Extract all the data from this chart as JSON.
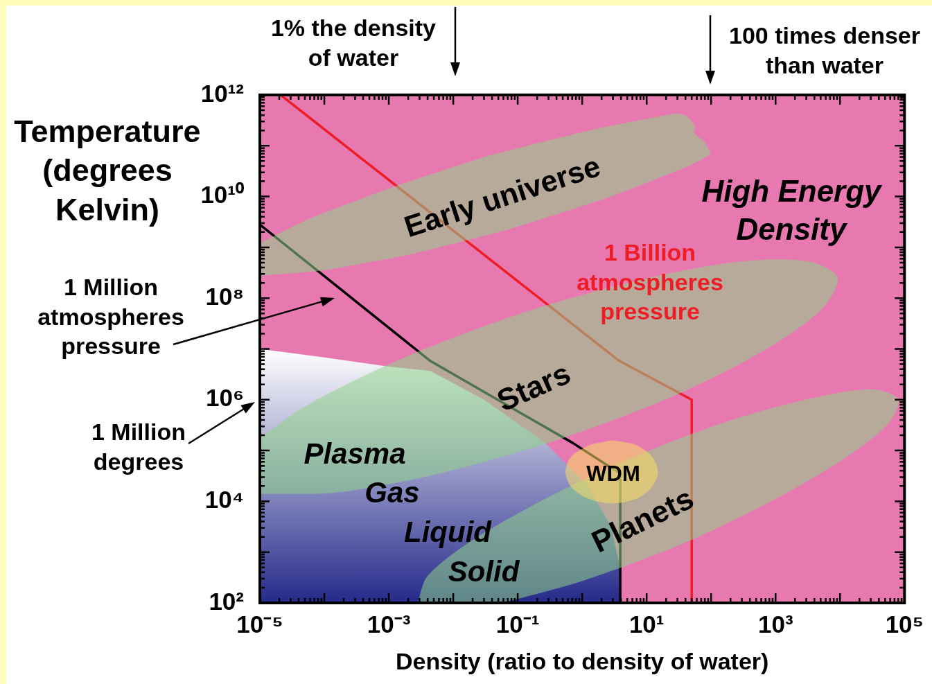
{
  "chart_data": {
    "type": "line",
    "xlabel": "Density (ratio to density of water)",
    "ylabel": "Temperature (degrees Kelvin)",
    "log": "xy",
    "xlim": [
      1e-05,
      100000.0
    ],
    "ylim": [
      100,
      1000000000000.0
    ],
    "xticks": [
      {
        "value": 1e-05,
        "label": "10⁻⁵"
      },
      {
        "value": 2e-05,
        "label": null
      },
      {
        "value": 3e-05,
        "label": null
      },
      {
        "value": 4e-05,
        "label": null
      },
      {
        "value": 5e-05,
        "label": null
      },
      {
        "value": 6e-05,
        "label": null
      },
      {
        "value": 7e-05,
        "label": null
      },
      {
        "value": 8e-05,
        "label": null
      },
      {
        "value": 9e-05,
        "label": null
      },
      {
        "value": 0.0001,
        "label": null
      },
      {
        "value": 0.0002,
        "label": null
      },
      {
        "value": 0.0003,
        "label": null
      },
      {
        "value": 0.0004,
        "label": null
      },
      {
        "value": 0.0005,
        "label": null
      },
      {
        "value": 0.0006,
        "label": null
      },
      {
        "value": 0.0007,
        "label": null
      },
      {
        "value": 0.0008,
        "label": null
      },
      {
        "value": 0.0009,
        "label": null
      },
      {
        "value": 0.001,
        "label": "10⁻³"
      },
      {
        "value": 0.002,
        "label": null
      },
      {
        "value": 0.003,
        "label": null
      },
      {
        "value": 0.004,
        "label": null
      },
      {
        "value": 0.005,
        "label": null
      },
      {
        "value": 0.006,
        "label": null
      },
      {
        "value": 0.007,
        "label": null
      },
      {
        "value": 0.008,
        "label": null
      },
      {
        "value": 0.009,
        "label": null
      },
      {
        "value": 0.01,
        "label": null
      },
      {
        "value": 0.02,
        "label": null
      },
      {
        "value": 0.03,
        "label": null
      },
      {
        "value": 0.04,
        "label": null
      },
      {
        "value": 0.05,
        "label": null
      },
      {
        "value": 0.06,
        "label": null
      },
      {
        "value": 0.07,
        "label": null
      },
      {
        "value": 0.08,
        "label": null
      },
      {
        "value": 0.09,
        "label": null
      },
      {
        "value": 0.1,
        "label": "10⁻¹"
      },
      {
        "value": 0.2,
        "label": null
      },
      {
        "value": 0.3,
        "label": null
      },
      {
        "value": 0.4,
        "label": null
      },
      {
        "value": 0.5,
        "label": null
      },
      {
        "value": 0.6,
        "label": null
      },
      {
        "value": 0.7,
        "label": null
      },
      {
        "value": 0.8,
        "label": null
      },
      {
        "value": 0.9,
        "label": null
      },
      {
        "value": 1,
        "label": null
      },
      {
        "value": 2,
        "label": null
      },
      {
        "value": 3,
        "label": null
      },
      {
        "value": 4,
        "label": null
      },
      {
        "value": 5,
        "label": null
      },
      {
        "value": 6,
        "label": null
      },
      {
        "value": 7,
        "label": null
      },
      {
        "value": 8,
        "label": null
      },
      {
        "value": 9,
        "label": null
      },
      {
        "value": 10,
        "label": "10¹"
      },
      {
        "value": 20,
        "label": null
      },
      {
        "value": 30,
        "label": null
      },
      {
        "value": 40,
        "label": null
      },
      {
        "value": 50,
        "label": null
      },
      {
        "value": 60,
        "label": null
      },
      {
        "value": 70,
        "label": null
      },
      {
        "value": 80,
        "label": null
      },
      {
        "value": 90,
        "label": null
      },
      {
        "value": 100,
        "label": null
      },
      {
        "value": 200,
        "label": null
      },
      {
        "value": 300,
        "label": null
      },
      {
        "value": 400,
        "label": null
      },
      {
        "value": 500,
        "label": null
      },
      {
        "value": 600,
        "label": null
      },
      {
        "value": 700,
        "label": null
      },
      {
        "value": 800,
        "label": null
      },
      {
        "value": 900,
        "label": null
      },
      {
        "value": 1000,
        "label": "10³"
      },
      {
        "value": 2000,
        "label": null
      },
      {
        "value": 3000,
        "label": null
      },
      {
        "value": 4000,
        "label": null
      },
      {
        "value": 5000,
        "label": null
      },
      {
        "value": 6000,
        "label": null
      },
      {
        "value": 7000,
        "label": null
      },
      {
        "value": 8000,
        "label": null
      },
      {
        "value": 9000,
        "label": null
      },
      {
        "value": 10000,
        "label": null
      },
      {
        "value": 20000,
        "label": null
      },
      {
        "value": 30000,
        "label": null
      },
      {
        "value": 40000,
        "label": null
      },
      {
        "value": 50000,
        "label": null
      },
      {
        "value": 60000,
        "label": null
      },
      {
        "value": 70000,
        "label": null
      },
      {
        "value": 80000,
        "label": null
      },
      {
        "value": 90000,
        "label": null
      },
      {
        "value": 100000,
        "label": "10⁵"
      }
    ],
    "yticks": [
      {
        "value": 100,
        "label": "10²"
      },
      {
        "value": 200,
        "label": null
      },
      {
        "value": 300,
        "label": null
      },
      {
        "value": 400,
        "label": null
      },
      {
        "value": 500,
        "label": null
      },
      {
        "value": 600,
        "label": null
      },
      {
        "value": 700,
        "label": null
      },
      {
        "value": 800,
        "label": null
      },
      {
        "value": 900,
        "label": null
      },
      {
        "value": 1000,
        "label": null
      },
      {
        "value": 2000,
        "label": null
      },
      {
        "value": 3000,
        "label": null
      },
      {
        "value": 4000,
        "label": null
      },
      {
        "value": 5000,
        "label": null
      },
      {
        "value": 6000,
        "label": null
      },
      {
        "value": 7000,
        "label": null
      },
      {
        "value": 8000,
        "label": null
      },
      {
        "value": 9000,
        "label": null
      },
      {
        "value": 10000.0,
        "label": "10⁴"
      },
      {
        "value": 20000.0,
        "label": null
      },
      {
        "value": 30000.0,
        "label": null
      },
      {
        "value": 40000.0,
        "label": null
      },
      {
        "value": 50000.0,
        "label": null
      },
      {
        "value": 60000.0,
        "label": null
      },
      {
        "value": 70000.0,
        "label": null
      },
      {
        "value": 80000.0,
        "label": null
      },
      {
        "value": 90000.0,
        "label": null
      },
      {
        "value": 100000.0,
        "label": null
      },
      {
        "value": 200000.0,
        "label": null
      },
      {
        "value": 300000.0,
        "label": null
      },
      {
        "value": 400000.0,
        "label": null
      },
      {
        "value": 500000.0,
        "label": null
      },
      {
        "value": 600000.0,
        "label": null
      },
      {
        "value": 700000.0,
        "label": null
      },
      {
        "value": 800000.0,
        "label": null
      },
      {
        "value": 900000.0,
        "label": null
      },
      {
        "value": 1000000.0,
        "label": "10⁶"
      },
      {
        "value": 2000000.0,
        "label": null
      },
      {
        "value": 3000000.0,
        "label": null
      },
      {
        "value": 4000000.0,
        "label": null
      },
      {
        "value": 5000000.0,
        "label": null
      },
      {
        "value": 6000000.0,
        "label": null
      },
      {
        "value": 7000000.0,
        "label": null
      },
      {
        "value": 8000000.0,
        "label": null
      },
      {
        "value": 9000000.0,
        "label": null
      },
      {
        "value": 10000000.0,
        "label": null
      },
      {
        "value": 20000000.0,
        "label": null
      },
      {
        "value": 30000000.0,
        "label": null
      },
      {
        "value": 40000000.0,
        "label": null
      },
      {
        "value": 50000000.0,
        "label": null
      },
      {
        "value": 60000000.0,
        "label": null
      },
      {
        "value": 70000000.0,
        "label": null
      },
      {
        "value": 80000000.0,
        "label": null
      },
      {
        "value": 90000000.0,
        "label": null
      },
      {
        "value": 100000000.0,
        "label": "10⁸"
      },
      {
        "value": 200000000.0,
        "label": null
      },
      {
        "value": 300000000.0,
        "label": null
      },
      {
        "value": 400000000.0,
        "label": null
      },
      {
        "value": 500000000.0,
        "label": null
      },
      {
        "value": 600000000.0,
        "label": null
      },
      {
        "value": 700000000.0,
        "label": null
      },
      {
        "value": 800000000.0,
        "label": null
      },
      {
        "value": 900000000.0,
        "label": null
      },
      {
        "value": 1000000000.0,
        "label": null
      },
      {
        "value": 2000000000.0,
        "label": null
      },
      {
        "value": 3000000000.0,
        "label": null
      },
      {
        "value": 4000000000.0,
        "label": null
      },
      {
        "value": 5000000000.0,
        "label": null
      },
      {
        "value": 6000000000.0,
        "label": null
      },
      {
        "value": 7000000000.0,
        "label": null
      },
      {
        "value": 8000000000.0,
        "label": null
      },
      {
        "value": 9000000000.0,
        "label": null
      },
      {
        "value": 10000000000.0,
        "label": "10¹⁰"
      },
      {
        "value": 20000000000.0,
        "label": null
      },
      {
        "value": 30000000000.0,
        "label": null
      },
      {
        "value": 40000000000.0,
        "label": null
      },
      {
        "value": 50000000000.0,
        "label": null
      },
      {
        "value": 60000000000.0,
        "label": null
      },
      {
        "value": 70000000000.0,
        "label": null
      },
      {
        "value": 80000000000.0,
        "label": null
      },
      {
        "value": 90000000000.0,
        "label": null
      },
      {
        "value": 100000000000.0,
        "label": null
      },
      {
        "value": 200000000000.0,
        "label": null
      },
      {
        "value": 300000000000.0,
        "label": null
      },
      {
        "value": 400000000000.0,
        "label": null
      },
      {
        "value": 500000000000.0,
        "label": null
      },
      {
        "value": 600000000000.0,
        "label": null
      },
      {
        "value": 700000000000.0,
        "label": null
      },
      {
        "value": 800000000000.0,
        "label": null
      },
      {
        "value": 900000000000.0,
        "label": null
      },
      {
        "value": 1000000000000.0,
        "label": "10¹²"
      }
    ],
    "series": [
      {
        "type": "area",
        "color": "#252a8a",
        "x": [
          1e-05,
          0.0001,
          0.001,
          0.0044,
          0.03,
          0.27,
          1.2,
          2.8,
          3.9,
          3.9,
          1e-05
        ],
        "values": [
          10000000.0,
          6800000.0,
          4500000.0,
          3700000.0,
          1000000.0,
          140000.0,
          21000.0,
          3200,
          480,
          100,
          100
        ]
      },
      {
        "type": "line",
        "name": "1 Million atmospheres pressure",
        "color": "#000000",
        "x": [
          1e-05,
          0.0044,
          0.72,
          3.9,
          3.9
        ],
        "values": [
          2800000000.0,
          5800000.0,
          140000.0,
          35000.0,
          100
        ]
      },
      {
        "type": "line",
        "name": "1 Billion atmospheres pressure",
        "color": "#ee1c25",
        "x": [
          2.1e-05,
          3.7,
          50,
          50
        ],
        "values": [
          1000000000000.0,
          5900000.0,
          1000000.0,
          100
        ]
      },
      {
        "type": "area",
        "color": "#8fd488",
        "x": [
          1e-05,
          5.7e-05,
          0.0011,
          0.036,
          1.3,
          28,
          41,
          57,
          54,
          78,
          98,
          47,
          2.5,
          0.075,
          0.0021,
          9.6e-05,
          1.1e-05,
          1e-05
        ],
        "values": [
          1200000000.0,
          3600000000.0,
          15000000000.0,
          64000000000.0,
          200000000000.0,
          430000000000.0,
          390000000000.0,
          240000000000.0,
          180000000000.0,
          120000000000.0,
          69000000000.0,
          41000000000.0,
          9500000000.0,
          2300000000.0,
          720000000.0,
          350000000.0,
          280000000.0,
          290000000.0
        ]
      },
      {
        "type": "area",
        "color": "#8fd488",
        "x": [
          1e-05,
          5.6e-05,
          0.0016,
          0.092,
          6.0,
          230,
          3000,
          9100,
          5300,
          650,
          23,
          0.4,
          0.006,
          0.00016,
          1.2e-05,
          1e-05
        ],
        "values": [
          180000.0,
          800000.0,
          6500000.0,
          46000000.0,
          210000000.0,
          510000000.0,
          540000000.0,
          260000000.0,
          62000000.0,
          9200000.0,
          1100000.0,
          160000.0,
          35000.0,
          15000.0,
          14000.0,
          14000.0
        ]
      },
      {
        "type": "area",
        "color": "#8fd488",
        "x": [
          0.0028,
          0.004,
          0.021,
          0.3,
          7.6,
          210,
          4000,
          32000,
          80000,
          54000,
          10000,
          730,
          29,
          1.0,
          0.058
        ],
        "values": [
          100,
          340,
          1800,
          12000.0,
          83000.0,
          400000.0,
          1100000.0,
          1600000.0,
          1000000.0,
          320000.0,
          61000.0,
          9000,
          1300,
          270,
          100
        ]
      },
      {
        "type": "area",
        "color": "#f8dc64",
        "x": [
          2.9,
          6.7,
          12,
          15,
          12,
          6.7,
          2.9,
          1.3,
          0.68,
          0.55,
          0.68,
          1.3
        ],
        "values": [
          160000.0,
          130000.0,
          77000.0,
          38000.0,
          19000.0,
          11000.0,
          9100,
          11000.0,
          19000.0,
          38000.0,
          77000.0,
          130000.0
        ]
      }
    ],
    "annotations": [
      "1% the density of water",
      "100 times denser than water",
      "1 Million degrees",
      "High Energy Density",
      "Early universe",
      "Stars",
      "Plasma",
      "Gas",
      "Liquid",
      "Solid",
      "WDM",
      "Planets"
    ]
  }
}
